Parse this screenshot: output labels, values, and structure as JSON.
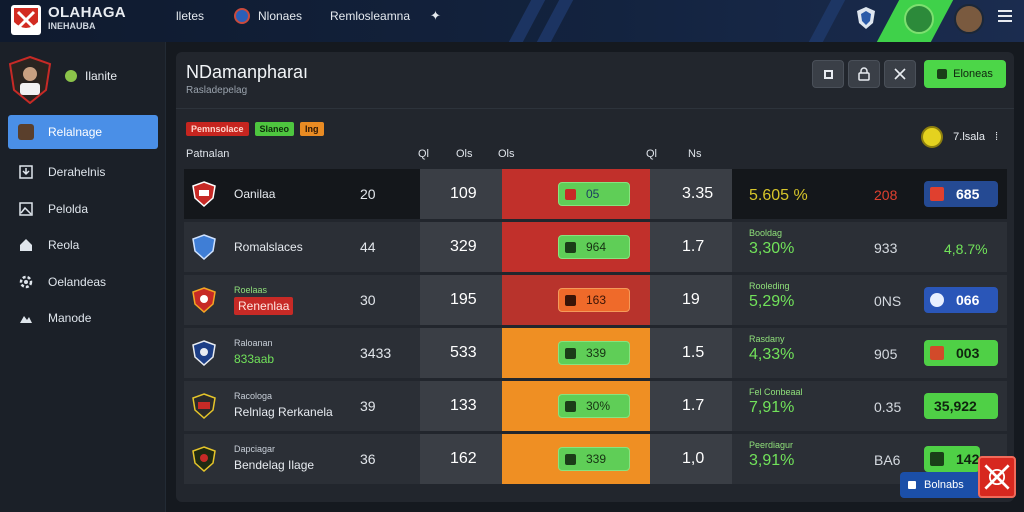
{
  "header": {
    "brand": "OLAHAGA",
    "brand_sub": "INEHAUBA",
    "nav": [
      "lletes",
      "Nlonaes",
      "Remlosleamna"
    ],
    "colors": {
      "bar": "#13233f",
      "accent": "#3fd14a"
    }
  },
  "sidebar": {
    "team": "Ilanite",
    "items": [
      {
        "label": "Relalnage",
        "icon": "avatar-icon",
        "active": true
      },
      {
        "label": "Derahelnis",
        "icon": "download-icon"
      },
      {
        "label": "Pelolda",
        "icon": "image-icon"
      },
      {
        "label": "Reola",
        "icon": "home-icon"
      },
      {
        "label": "Oelandeas",
        "icon": "gear-icon"
      },
      {
        "label": "Manode",
        "icon": "mountain-icon"
      }
    ]
  },
  "panel": {
    "title": "NDamanpharaı",
    "subtitle": "Rasladepelag",
    "primary_button": "Eloneas",
    "filters": [
      {
        "label": "Pemnsolace",
        "bg": "#c6251f",
        "fg": "#ffd6cc"
      },
      {
        "label": "Slaneo",
        "bg": "#4ec63f",
        "fg": "#0e2a0c"
      },
      {
        "label": "Ing",
        "bg": "#e98b23",
        "fg": "#2a1505"
      }
    ],
    "count_label": "7.lsala",
    "columns": {
      "team": "Patnalan",
      "c1": "Ql",
      "c2": "Ols",
      "c3": "Ols",
      "c4": "Ql",
      "c5": "Ns"
    }
  },
  "rows": [
    {
      "sub": "",
      "name": "Oanilaa",
      "tag": "",
      "v1": "20",
      "v2": "109",
      "heat": "#c1302b",
      "pill": "05",
      "v3": "3.35",
      "plabel": "",
      "pct": "5.605 %",
      "pct_color": "#d6c52a",
      "v4": "208",
      "v4_color": "#e0402f",
      "end": "685",
      "end_bg": "#254a93",
      "end_icon": "#e0402f"
    },
    {
      "sub": "",
      "name": "Romalslaces",
      "tag": "",
      "v1": "44",
      "v2": "329",
      "heat": "#c1302b",
      "pill": "964",
      "v3": "1.7",
      "plabel": "Booldag",
      "pct": "3,30%",
      "pct_color": "#71e25a",
      "v4": "933",
      "v4_color": "#d5dae0",
      "end": "4,8.7%",
      "end_bg": "",
      "end_icon": ""
    },
    {
      "sub": "Roelaas",
      "name": "Renenlaa",
      "tag": "red",
      "v1": "30",
      "v2": "195",
      "heat": "#b8332c",
      "pill": "163",
      "v3": "19",
      "plabel": "Rooleding",
      "pct": "5,29%",
      "pct_color": "#71e25a",
      "v4": "0NS",
      "v4_color": "#d5dae0",
      "end": "066",
      "end_bg": "#2a56b8",
      "end_icon": "#e8f0ff"
    },
    {
      "sub": "Raloanan",
      "name": "833aab",
      "tag": "green",
      "v1": "3433",
      "v2": "533",
      "heat": "#ef8f23",
      "pill": "339",
      "v3": "1.5",
      "plabel": "Rasdany",
      "pct": "4,33%",
      "pct_color": "#71e25a",
      "v4": "905",
      "v4_color": "#d5dae0",
      "end": "003",
      "end_bg": "#4fd046",
      "end_icon": "#d24a2a"
    },
    {
      "sub": "Racologa",
      "name": "Relnlag Rerkanela",
      "tag": "",
      "v1": "39",
      "v2": "133",
      "heat": "#ef8f23",
      "pill": "30%",
      "v3": "1.7",
      "plabel": "Fel Conbeaal",
      "pct": "7,91%",
      "pct_color": "#71e25a",
      "v4": "0.35",
      "v4_color": "#d5dae0",
      "end": "35,922",
      "end_bg": "#4fd046",
      "end_icon": ""
    },
    {
      "sub": "Dapciagar",
      "name": "Bendelag Ilage",
      "tag": "",
      "v1": "36",
      "v2": "162",
      "heat": "#ef8f23",
      "pill": "339",
      "v3": "1,0",
      "plabel": "Peerdiagur",
      "pct": "3,91%",
      "pct_color": "#71e25a",
      "v4": "BA6",
      "v4_color": "#d5dae0",
      "end": "142",
      "end_bg": "#4fd046",
      "end_icon": ""
    }
  ],
  "float_button": "Bolnabs"
}
